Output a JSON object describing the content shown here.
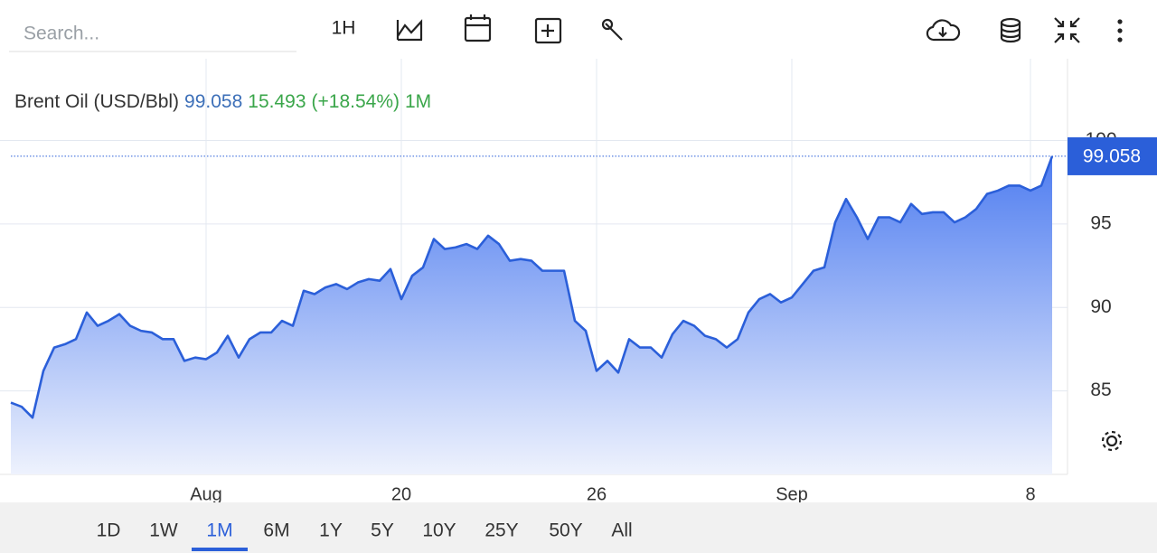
{
  "toolbar": {
    "search_placeholder": "Search...",
    "interval": "1H"
  },
  "header": {
    "name": "Brent Oil (USD/Bbl)",
    "price": "99.058",
    "change": "15.493",
    "change_pct": "(+18.54%)",
    "range": "1M"
  },
  "ranges": {
    "items": [
      "1D",
      "1W",
      "1M",
      "6M",
      "1Y",
      "5Y",
      "10Y",
      "25Y",
      "50Y",
      "All"
    ],
    "selected": 2
  },
  "chart_data": {
    "type": "area",
    "categories": [
      null,
      null,
      null,
      null,
      null,
      null,
      null,
      null,
      null,
      null,
      null,
      null,
      null,
      null,
      null,
      null,
      null,
      null,
      "Aug",
      null,
      null,
      null,
      null,
      null,
      null,
      null,
      null,
      null,
      null,
      null,
      null,
      null,
      null,
      null,
      null,
      null,
      "20",
      null,
      null,
      null,
      null,
      null,
      null,
      null,
      null,
      null,
      null,
      null,
      null,
      null,
      null,
      null,
      null,
      null,
      "26",
      null,
      null,
      null,
      null,
      null,
      null,
      null,
      null,
      null,
      null,
      null,
      null,
      null,
      null,
      null,
      null,
      null,
      "Sep",
      null,
      null,
      null,
      null,
      null,
      null,
      null,
      null,
      null,
      null,
      null,
      null,
      null,
      null,
      null,
      null,
      null,
      null,
      null,
      null,
      null,
      "8",
      null,
      null
    ],
    "series": [
      {
        "color": "#2b5fd9",
        "values": [
          84.3,
          84.05,
          83.4,
          86.2,
          87.6,
          87.8,
          88.1,
          89.7,
          88.9,
          89.2,
          89.6,
          88.9,
          88.6,
          88.5,
          88.1,
          88.1,
          86.8,
          87.0,
          86.9,
          87.3,
          88.3,
          87.0,
          88.1,
          88.5,
          88.5,
          89.2,
          88.9,
          91.0,
          90.8,
          91.2,
          91.4,
          91.1,
          91.5,
          91.7,
          91.6,
          92.3,
          90.5,
          91.9,
          92.4,
          94.1,
          93.5,
          93.6,
          93.8,
          93.5,
          94.3,
          93.8,
          92.8,
          92.9,
          92.8,
          92.2,
          92.2,
          92.2,
          89.2,
          88.6,
          86.2,
          86.8,
          86.1,
          88.1,
          87.6,
          87.6,
          87.0,
          88.4,
          89.2,
          88.9,
          88.3,
          88.1,
          87.6,
          88.1,
          89.7,
          90.5,
          90.8,
          90.3,
          90.6,
          91.4,
          92.2,
          92.4,
          95.1,
          96.5,
          95.4,
          94.1,
          95.4,
          95.4,
          95.1,
          96.2,
          95.6,
          95.7,
          95.7,
          95.1,
          95.4,
          95.9,
          96.8,
          97.0,
          97.3,
          97.3,
          97.0,
          97.3,
          99.058
        ]
      }
    ],
    "ylim": [
      80,
      104.9
    ],
    "yticks": [
      85,
      90,
      95,
      100
    ],
    "grid": true
  }
}
